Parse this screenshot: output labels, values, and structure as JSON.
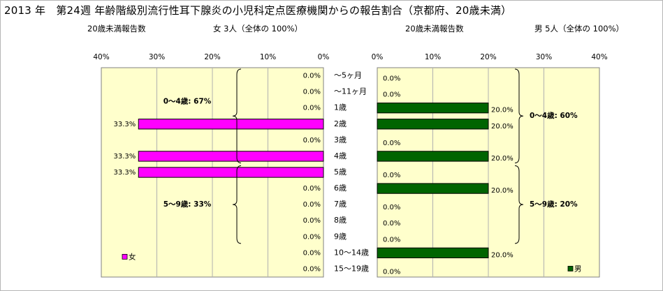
{
  "title": "2013 年　第24週 年齢階級別流行性耳下腺炎の小児科定点医療機関からの報告割合（京都府、20歳未満）",
  "left_subtitle": {
    "label": "20歳未満報告数",
    "summary": "女 3人（全体の 100%）"
  },
  "right_subtitle": {
    "label": "20歳未満報告数",
    "summary": "男 5人（全体の 100%）"
  },
  "colors": {
    "female": "#ff00ff",
    "male": "#006400",
    "plot_bg": "#ffffcc",
    "bar_border": "#000000"
  },
  "chart_data": [
    {
      "type": "bar",
      "orientation": "horizontal",
      "direction": "right-to-left",
      "categories": [
        "～5ヶ月",
        "～11ヶ月",
        "1歳",
        "2歳",
        "3歳",
        "4歳",
        "5歳",
        "6歳",
        "7歳",
        "8歳",
        "9歳",
        "10～14歳",
        "15～19歳"
      ],
      "series": [
        {
          "name": "女",
          "values": [
            0.0,
            0.0,
            0.0,
            33.3,
            0.0,
            33.3,
            33.3,
            0.0,
            0.0,
            0.0,
            0.0,
            0.0,
            0.0
          ]
        }
      ],
      "value_labels": [
        "0.0%",
        "0.0%",
        "0.0%",
        "33.3%",
        "0.0%",
        "33.3%",
        "33.3%",
        "0.0%",
        "0.0%",
        "0.0%",
        "0.0%",
        "0.0%",
        "0.0%"
      ],
      "xlim": [
        0,
        40
      ],
      "xticks": [
        "40%",
        "30%",
        "20%",
        "10%",
        "0%"
      ],
      "grid": true,
      "legend": {
        "text": "女",
        "position": "bottom-left"
      },
      "annotations": [
        {
          "text": "0～4歳: 67%",
          "from": 0,
          "to": 5
        },
        {
          "text": "5～9歳: 33%",
          "from": 6,
          "to": 10
        }
      ]
    },
    {
      "type": "bar",
      "orientation": "horizontal",
      "direction": "left-to-right",
      "categories": [
        "～5ヶ月",
        "～11ヶ月",
        "1歳",
        "2歳",
        "3歳",
        "4歳",
        "5歳",
        "6歳",
        "7歳",
        "8歳",
        "9歳",
        "10～14歳",
        "15～19歳"
      ],
      "series": [
        {
          "name": "男",
          "values": [
            0.0,
            0.0,
            20.0,
            20.0,
            0.0,
            20.0,
            0.0,
            20.0,
            0.0,
            0.0,
            0.0,
            20.0,
            0.0
          ]
        }
      ],
      "value_labels": [
        "0.0%",
        "0.0%",
        "20.0%",
        "20.0%",
        "0.0%",
        "20.0%",
        "0.0%",
        "20.0%",
        "0.0%",
        "0.0%",
        "0.0%",
        "20.0%",
        "0.0%"
      ],
      "xlim": [
        0,
        40
      ],
      "xticks": [
        "0%",
        "10%",
        "20%",
        "30%",
        "40%"
      ],
      "grid": true,
      "legend": {
        "text": "男",
        "position": "bottom-right"
      },
      "annotations": [
        {
          "text": "0～4歳: 60%",
          "from": 0,
          "to": 5
        },
        {
          "text": "5～9歳: 20%",
          "from": 6,
          "to": 10
        }
      ]
    }
  ]
}
